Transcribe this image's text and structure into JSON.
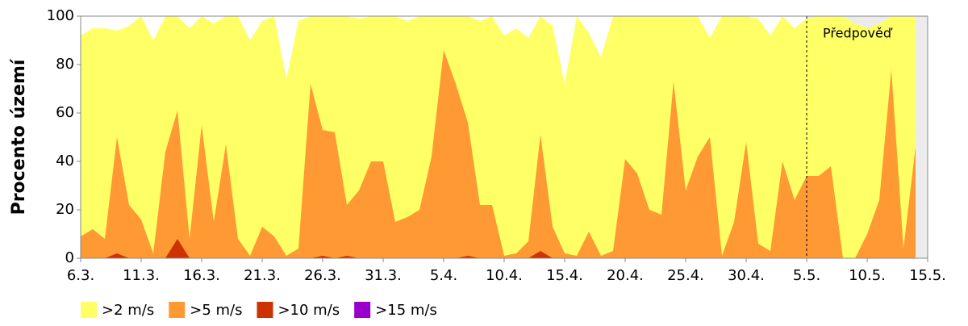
{
  "chart_data": {
    "type": "area",
    "ylabel": "Procento území",
    "categories": [
      "6.3.",
      null,
      null,
      null,
      null,
      "11.3.",
      null,
      null,
      null,
      null,
      "16.3.",
      null,
      null,
      null,
      null,
      "21.3.",
      null,
      null,
      null,
      null,
      "26.3.",
      null,
      null,
      null,
      null,
      "31.3.",
      null,
      null,
      null,
      null,
      "5.4.",
      null,
      null,
      null,
      null,
      "10.4.",
      null,
      null,
      null,
      null,
      "15.4.",
      null,
      null,
      null,
      null,
      "20.4.",
      null,
      null,
      null,
      null,
      "25.4.",
      null,
      null,
      null,
      null,
      "30.4.",
      null,
      null,
      null,
      null,
      "5.5.",
      null,
      null,
      null,
      null,
      "10.5.",
      null,
      null,
      null,
      null,
      "15.5."
    ],
    "series": [
      {
        "name": ">2 m/s",
        "color": "#ffff66",
        "values": [
          92,
          95,
          95,
          94,
          96,
          100,
          90,
          100,
          100,
          95,
          100,
          97,
          100,
          100,
          90,
          98,
          100,
          74,
          98,
          100,
          100,
          100,
          100,
          99,
          100,
          100,
          100,
          98,
          100,
          100,
          100,
          100,
          100,
          98,
          100,
          92,
          95,
          91,
          100,
          96,
          72,
          100,
          93,
          83,
          100,
          100,
          100,
          100,
          100,
          100,
          100,
          100,
          91,
          100,
          100,
          100,
          99,
          92,
          100,
          95,
          99,
          100,
          100,
          100,
          97,
          95,
          97,
          100,
          100,
          100,
          null
        ]
      },
      {
        "name": ">5 m/s",
        "color": "#ff9933",
        "values": [
          9,
          12,
          8,
          50,
          22,
          16,
          2,
          44,
          61,
          8,
          55,
          15,
          47,
          8,
          1,
          13,
          9,
          1,
          4,
          72,
          53,
          52,
          22,
          28,
          40,
          40,
          15,
          17,
          20,
          42,
          86,
          72,
          56,
          22,
          22,
          1,
          2,
          7,
          51,
          13,
          2,
          1,
          11,
          1,
          3,
          41,
          35,
          20,
          18,
          73,
          28,
          42,
          50,
          1,
          15,
          48,
          6,
          3,
          40,
          24,
          34,
          34,
          38,
          0,
          0,
          10,
          24,
          78,
          4,
          46,
          null
        ]
      },
      {
        "name": ">10 m/s",
        "color": "#cc3300",
        "values": [
          0,
          0,
          0,
          2,
          0,
          0,
          0,
          0,
          8,
          0,
          0,
          0,
          0,
          0,
          0,
          0,
          0,
          0,
          0,
          0,
          1,
          0,
          1,
          0,
          0,
          0,
          0,
          0,
          0,
          0,
          0,
          0,
          1,
          0,
          0,
          0,
          0,
          0,
          3,
          0,
          0,
          0,
          0,
          0,
          0,
          0,
          0,
          0,
          0,
          0,
          0,
          0,
          0,
          0,
          0,
          0,
          0,
          0,
          0,
          0,
          0,
          0,
          0,
          0,
          0,
          0,
          0,
          0,
          0,
          0,
          null
        ]
      },
      {
        "name": ">15 m/s",
        "color": "#9900cc",
        "values": [
          0,
          0,
          0,
          0,
          0,
          0,
          0,
          0,
          0,
          0,
          0,
          0,
          0,
          0,
          0,
          0,
          0,
          0,
          0,
          0,
          0,
          0,
          0,
          0,
          0,
          0,
          0,
          0,
          0,
          0,
          0,
          0,
          0,
          0,
          0,
          0,
          0,
          0,
          0,
          0,
          0,
          0,
          0,
          0,
          0,
          0,
          0,
          0,
          0,
          0,
          0,
          0,
          0,
          0,
          0,
          0,
          0,
          0,
          0,
          0,
          0,
          0,
          0,
          0,
          0,
          0,
          0,
          0,
          0,
          0,
          null
        ]
      }
    ],
    "ylim": [
      0,
      100
    ],
    "yticks": [
      0,
      20,
      40,
      60,
      80,
      100
    ],
    "annotation": {
      "text": "Předpověď",
      "x": "5.5.",
      "background": "#ececec"
    },
    "legend": "bottom-left"
  }
}
